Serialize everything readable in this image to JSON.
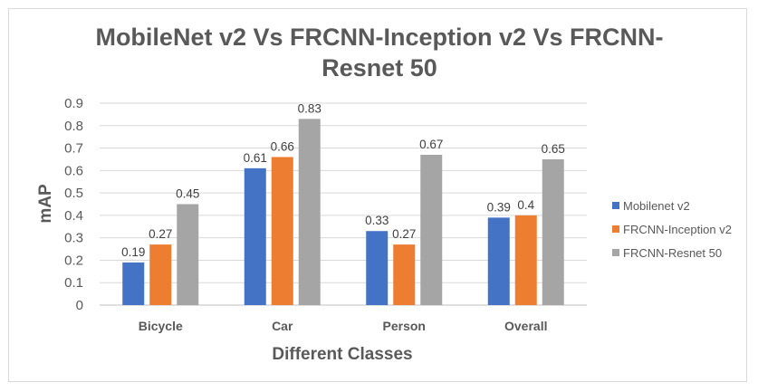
{
  "chart_data": {
    "type": "bar",
    "title_lines": [
      "MobileNet v2 Vs FRCNN-Inception v2 Vs FRCNN-",
      "Resnet 50"
    ],
    "xlabel": "Different Classes",
    "ylabel": "mAP",
    "categories": [
      "Bicycle",
      "Car",
      "Person",
      "Overall"
    ],
    "ylim": [
      0,
      0.9
    ],
    "yticks": [
      "0",
      "0.1",
      "0.2",
      "0.3",
      "0.4",
      "0.5",
      "0.6",
      "0.7",
      "0.8",
      "0.9"
    ],
    "grid": true,
    "legend_position": "right",
    "series": [
      {
        "name": "Mobilenet v2",
        "color": "#4472c4",
        "values": [
          0.19,
          0.61,
          0.33,
          0.39
        ],
        "labels": [
          "0.19",
          "0.61",
          "0.33",
          "0.39"
        ]
      },
      {
        "name": "FRCNN-Inception v2",
        "color": "#ed7d31",
        "values": [
          0.27,
          0.66,
          0.27,
          0.4
        ],
        "labels": [
          "0.27",
          "0.66",
          "0.27",
          "0.4"
        ]
      },
      {
        "name": "FRCNN-Resnet 50",
        "color": "#a5a5a5",
        "values": [
          0.45,
          0.83,
          0.67,
          0.65
        ],
        "labels": [
          "0.45",
          "0.83",
          "0.67",
          "0.65"
        ]
      }
    ]
  }
}
